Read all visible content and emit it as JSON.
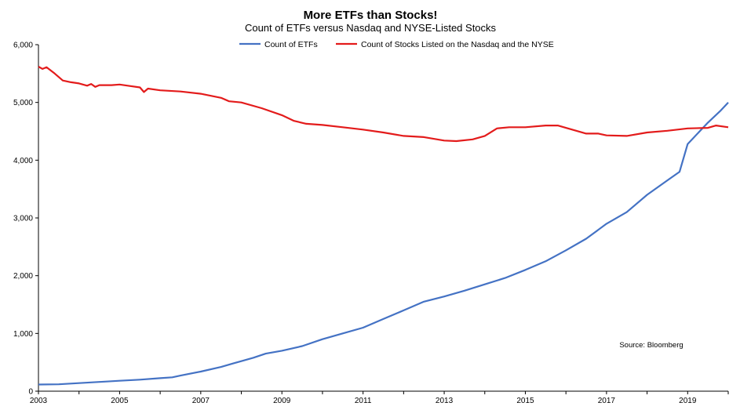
{
  "chart_data": {
    "type": "line",
    "title": "More ETFs than Stocks!",
    "subtitle": "Count of  ETFs versus Nasdaq and NYSE-Listed Stocks",
    "xlabel": "",
    "ylabel": "",
    "xlim": [
      2003,
      2020
    ],
    "ylim": [
      0,
      6000
    ],
    "x_ticks": [
      "2003",
      "2005",
      "2007",
      "2009",
      "2011",
      "2013",
      "2015",
      "2017",
      "2019"
    ],
    "y_ticks": [
      "0",
      "1,000",
      "2,000",
      "3,000",
      "4,000",
      "5,000",
      "6,000"
    ],
    "grid": false,
    "legend_position": "top-center",
    "annotation": "Source: Bloomberg",
    "series": [
      {
        "name": "Count of ETFs",
        "color": "#4472C4",
        "points": [
          [
            2003.0,
            115
          ],
          [
            2003.5,
            120
          ],
          [
            2004.0,
            140
          ],
          [
            2004.5,
            160
          ],
          [
            2005.0,
            180
          ],
          [
            2005.5,
            200
          ],
          [
            2006.0,
            225
          ],
          [
            2006.3,
            240
          ],
          [
            2006.5,
            270
          ],
          [
            2007.0,
            340
          ],
          [
            2007.5,
            420
          ],
          [
            2007.8,
            480
          ],
          [
            2008.0,
            520
          ],
          [
            2008.3,
            580
          ],
          [
            2008.6,
            650
          ],
          [
            2009.0,
            700
          ],
          [
            2009.5,
            780
          ],
          [
            2010.0,
            900
          ],
          [
            2010.5,
            1000
          ],
          [
            2011.0,
            1100
          ],
          [
            2011.5,
            1250
          ],
          [
            2012.0,
            1400
          ],
          [
            2012.5,
            1550
          ],
          [
            2013.0,
            1640
          ],
          [
            2013.5,
            1740
          ],
          [
            2014.0,
            1850
          ],
          [
            2014.5,
            1960
          ],
          [
            2015.0,
            2100
          ],
          [
            2015.5,
            2250
          ],
          [
            2016.0,
            2440
          ],
          [
            2016.5,
            2640
          ],
          [
            2017.0,
            2900
          ],
          [
            2017.5,
            3100
          ],
          [
            2018.0,
            3400
          ],
          [
            2018.5,
            3650
          ],
          [
            2018.8,
            3800
          ],
          [
            2019.0,
            4280
          ],
          [
            2019.5,
            4650
          ],
          [
            2019.8,
            4850
          ],
          [
            2020.0,
            5000
          ]
        ]
      },
      {
        "name": "Count of Stocks Listed on the Nasdaq and the NYSE",
        "color": "#E31B1B",
        "points": [
          [
            2003.0,
            5620
          ],
          [
            2003.1,
            5580
          ],
          [
            2003.2,
            5610
          ],
          [
            2003.4,
            5500
          ],
          [
            2003.6,
            5380
          ],
          [
            2003.8,
            5350
          ],
          [
            2004.0,
            5330
          ],
          [
            2004.2,
            5290
          ],
          [
            2004.3,
            5320
          ],
          [
            2004.4,
            5270
          ],
          [
            2004.5,
            5300
          ],
          [
            2004.8,
            5300
          ],
          [
            2005.0,
            5310
          ],
          [
            2005.2,
            5290
          ],
          [
            2005.5,
            5260
          ],
          [
            2005.6,
            5180
          ],
          [
            2005.7,
            5240
          ],
          [
            2006.0,
            5210
          ],
          [
            2006.5,
            5190
          ],
          [
            2007.0,
            5150
          ],
          [
            2007.5,
            5080
          ],
          [
            2007.7,
            5020
          ],
          [
            2008.0,
            5000
          ],
          [
            2008.5,
            4900
          ],
          [
            2009.0,
            4780
          ],
          [
            2009.3,
            4680
          ],
          [
            2009.6,
            4630
          ],
          [
            2010.0,
            4610
          ],
          [
            2010.5,
            4570
          ],
          [
            2011.0,
            4530
          ],
          [
            2011.5,
            4480
          ],
          [
            2012.0,
            4420
          ],
          [
            2012.5,
            4400
          ],
          [
            2013.0,
            4340
          ],
          [
            2013.3,
            4330
          ],
          [
            2013.7,
            4360
          ],
          [
            2014.0,
            4420
          ],
          [
            2014.3,
            4550
          ],
          [
            2014.6,
            4570
          ],
          [
            2015.0,
            4570
          ],
          [
            2015.5,
            4600
          ],
          [
            2015.8,
            4600
          ],
          [
            2016.0,
            4560
          ],
          [
            2016.5,
            4460
          ],
          [
            2016.8,
            4460
          ],
          [
            2017.0,
            4430
          ],
          [
            2017.5,
            4420
          ],
          [
            2018.0,
            4480
          ],
          [
            2018.5,
            4510
          ],
          [
            2019.0,
            4550
          ],
          [
            2019.5,
            4560
          ],
          [
            2019.7,
            4600
          ],
          [
            2020.0,
            4570
          ]
        ]
      }
    ]
  }
}
